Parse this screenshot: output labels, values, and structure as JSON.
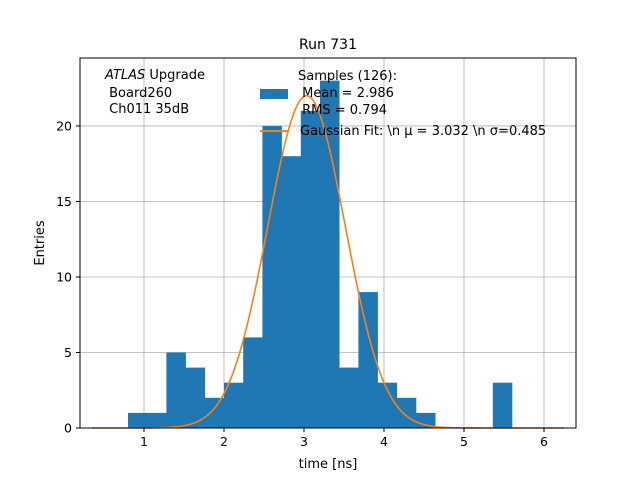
{
  "chart_data": {
    "type": "bar",
    "title": "Run 731",
    "xlabel": "time [ns]",
    "ylabel": "Entries",
    "xlim": [
      0.2,
      6.4
    ],
    "ylim": [
      0,
      24.5
    ],
    "xticks": [
      1,
      2,
      3,
      4,
      5,
      6
    ],
    "yticks": [
      0,
      5,
      10,
      15,
      20
    ],
    "grid": true,
    "bin_width": 0.24,
    "bins": [
      {
        "x": 0.8,
        "y": 1
      },
      {
        "x": 1.04,
        "y": 1
      },
      {
        "x": 1.28,
        "y": 5
      },
      {
        "x": 1.52,
        "y": 4
      },
      {
        "x": 1.76,
        "y": 2
      },
      {
        "x": 2.0,
        "y": 3
      },
      {
        "x": 2.24,
        "y": 6
      },
      {
        "x": 2.48,
        "y": 20
      },
      {
        "x": 2.72,
        "y": 18
      },
      {
        "x": 2.96,
        "y": 21
      },
      {
        "x": 3.2,
        "y": 23
      },
      {
        "x": 3.44,
        "y": 4
      },
      {
        "x": 3.68,
        "y": 9
      },
      {
        "x": 3.92,
        "y": 3
      },
      {
        "x": 4.16,
        "y": 2
      },
      {
        "x": 4.4,
        "y": 1
      },
      {
        "x": 5.36,
        "y": 3
      }
    ],
    "bar_color": "#1f77b4",
    "fit": {
      "mu": 3.032,
      "sigma": 0.485,
      "amplitude": 22.0,
      "color": "#ff7f0e"
    },
    "annotation": {
      "italic": "ATLAS",
      "line1_rest": " Upgrade",
      "line2": " Board260",
      "line3": " Ch011 35dB"
    },
    "legend": {
      "position": "upper center",
      "hist_lines": [
        "Samples (126):",
        " Mean = 2.986",
        " RMS = 0.794"
      ],
      "fit_label": "Gaussian Fit: \\n μ = 3.032 \\n σ=0.485"
    }
  }
}
